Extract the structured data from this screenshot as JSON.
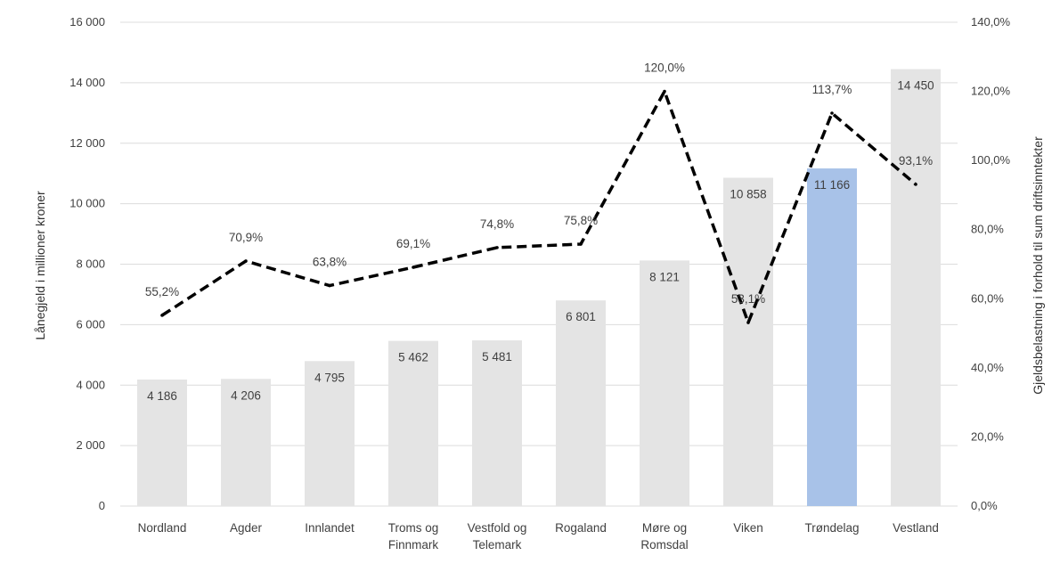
{
  "chart_data": {
    "type": "bar",
    "categories": [
      [
        "Nordland"
      ],
      [
        "Agder"
      ],
      [
        "Innlandet"
      ],
      [
        "Troms og",
        "Finnmark"
      ],
      [
        "Vestfold og",
        "Telemark"
      ],
      [
        "Rogaland"
      ],
      [
        "Møre og",
        "Romsdal"
      ],
      [
        "Viken"
      ],
      [
        "Trøndelag"
      ],
      [
        "Vestland"
      ]
    ],
    "series": [
      {
        "type": "bar",
        "axis": "left",
        "values": [
          4186,
          4206,
          4795,
          5462,
          5481,
          6801,
          8121,
          10858,
          11166,
          14450
        ],
        "labels": [
          "4 186",
          "4 206",
          "4 795",
          "5 462",
          "5 481",
          "6 801",
          "8 121",
          "10 858",
          "11 166",
          "14 450"
        ],
        "highlight_index": 8
      },
      {
        "type": "line",
        "axis": "right",
        "style": "dashed",
        "values": [
          55.2,
          70.9,
          63.8,
          69.1,
          74.8,
          75.8,
          120.0,
          53.1,
          113.7,
          93.1
        ],
        "labels": [
          "55,2%",
          "70,9%",
          "63,8%",
          "69,1%",
          "74,8%",
          "75,8%",
          "120,0%",
          "53,1%",
          "113,7%",
          "93,1%"
        ]
      }
    ],
    "ylabel": "Lånegjeld i millioner kroner",
    "y2label": "Gjeldsbelastning i forhold til sum driftsinntekter",
    "ylim": [
      0,
      16000
    ],
    "y2lim": [
      0,
      140
    ],
    "yticks": [
      "0",
      "2 000",
      "4 000",
      "6 000",
      "8 000",
      "10 000",
      "12 000",
      "14 000",
      "16 000"
    ],
    "y2ticks": [
      "0,0%",
      "20,0%",
      "40,0%",
      "60,0%",
      "80,0%",
      "100,0%",
      "120,0%",
      "140,0%"
    ],
    "grid": true,
    "colors": {
      "bar": "#e4e4e4",
      "highlight": "#a8c2e8",
      "line": "#000000",
      "grid": "#dcdcdc"
    }
  }
}
